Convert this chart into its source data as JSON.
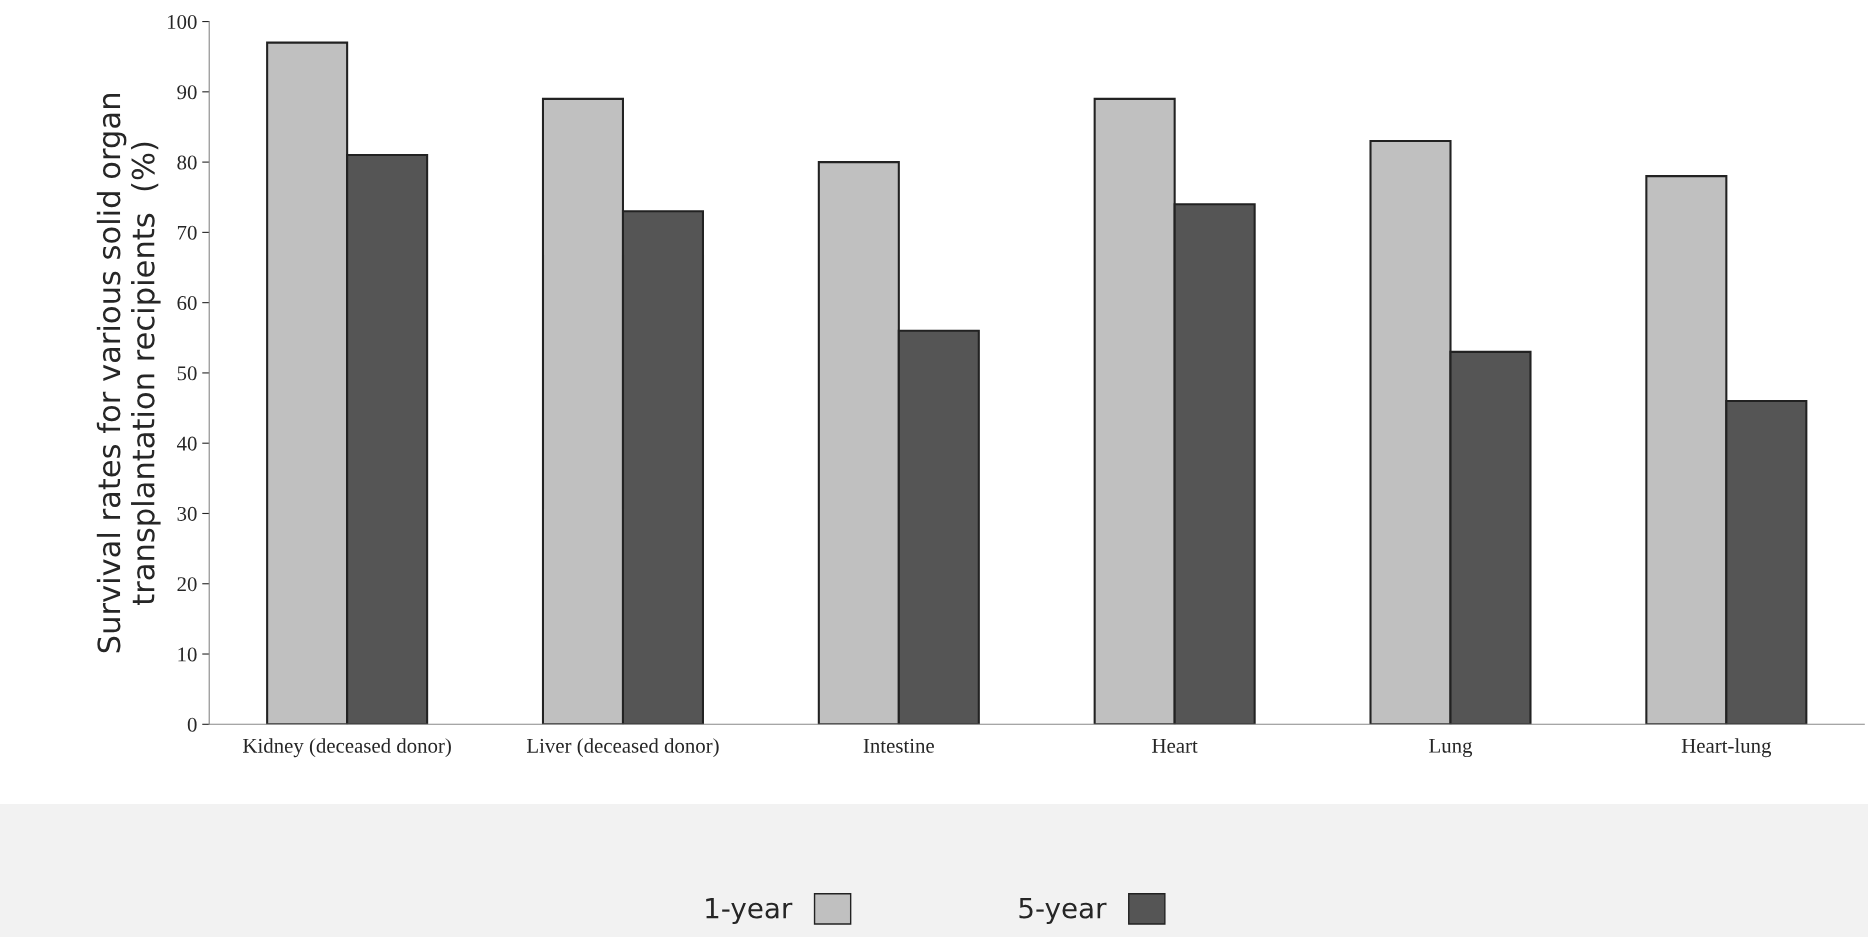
{
  "chart_data": {
    "type": "bar",
    "ylabel": "Survival rates for various solid organ\ntransplantation recipients  (%)",
    "categories": [
      "Kidney (deceased donor)",
      "Liver (deceased donor)",
      "Intestine",
      "Heart",
      "Lung",
      "Heart-lung"
    ],
    "series": [
      {
        "name": "1-year",
        "color": "#c0c0c0",
        "values": [
          97,
          89,
          80,
          89,
          83,
          78
        ]
      },
      {
        "name": "5-year",
        "color": "#555555",
        "values": [
          81,
          73,
          56,
          74,
          53,
          46
        ]
      }
    ],
    "ylim": [
      0,
      100
    ],
    "yticks": [
      0,
      10,
      20,
      30,
      40,
      50,
      60,
      70,
      80,
      90,
      100
    ],
    "grid": false,
    "legend": "bottom"
  }
}
